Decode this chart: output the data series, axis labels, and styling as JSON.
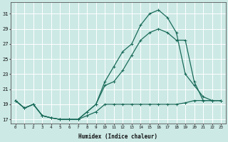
{
  "xlabel": "Humidex (Indice chaleur)",
  "background_color": "#cce9e5",
  "line_color": "#1a6b5a",
  "grid_color": "#ffffff",
  "xlim": [
    -0.5,
    23.5
  ],
  "ylim": [
    16.5,
    32.5
  ],
  "xticks": [
    0,
    1,
    2,
    3,
    4,
    5,
    6,
    7,
    8,
    9,
    10,
    11,
    12,
    13,
    14,
    15,
    16,
    17,
    18,
    19,
    20,
    21,
    22,
    23
  ],
  "yticks": [
    17,
    19,
    21,
    23,
    25,
    27,
    29,
    31
  ],
  "series1_x": [
    0,
    1,
    2,
    3,
    4,
    5,
    6,
    7,
    8,
    9,
    10,
    11,
    12,
    13,
    14,
    15,
    16,
    17,
    18,
    19,
    20,
    21,
    22,
    23
  ],
  "series1_y": [
    19.5,
    18.5,
    19.0,
    17.5,
    17.2,
    17.0,
    17.0,
    17.0,
    17.5,
    18.0,
    19.0,
    19.0,
    19.0,
    19.0,
    19.0,
    19.0,
    19.0,
    19.0,
    19.0,
    19.2,
    19.5,
    19.5,
    19.5,
    19.5
  ],
  "series2_x": [
    0,
    1,
    2,
    3,
    4,
    5,
    6,
    7,
    8,
    9,
    10,
    11,
    12,
    13,
    14,
    15,
    16,
    17,
    18,
    19,
    20,
    21,
    22,
    23
  ],
  "series2_y": [
    19.5,
    18.5,
    19.0,
    17.5,
    17.2,
    17.0,
    17.0,
    17.0,
    18.0,
    19.0,
    21.5,
    22.0,
    23.5,
    25.5,
    27.5,
    28.5,
    29.0,
    28.5,
    27.5,
    27.5,
    22.0,
    19.5,
    19.5,
    19.5
  ],
  "series3_x": [
    0,
    1,
    2,
    3,
    4,
    5,
    6,
    7,
    8,
    9,
    10,
    11,
    12,
    13,
    14,
    15,
    16,
    17,
    18,
    19,
    20,
    21,
    22,
    23
  ],
  "series3_y": [
    19.5,
    18.5,
    19.0,
    17.5,
    17.2,
    17.0,
    17.0,
    17.0,
    18.0,
    19.0,
    22.0,
    24.0,
    26.0,
    27.0,
    29.5,
    31.0,
    31.5,
    30.5,
    28.5,
    23.0,
    21.5,
    20.0,
    19.5,
    19.5
  ]
}
